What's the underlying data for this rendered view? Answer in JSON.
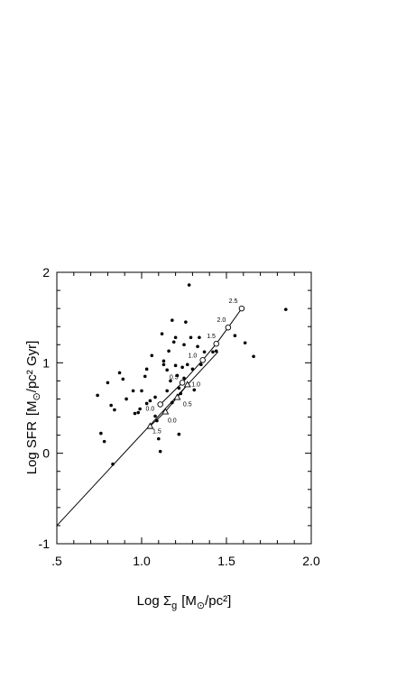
{
  "chart_data": {
    "type": "scatter",
    "title": "",
    "xlabel": {
      "main": "Log Σ",
      "sub": "g",
      "unit_open": "[M",
      "sun": "⊙",
      "unit_close": "/pc²]"
    },
    "ylabel": {
      "main": "Log SFR",
      "unit_open": "[M",
      "sun": "⊙",
      "unit_close": "/pc² Gyr]"
    },
    "xlim": [
      0.5,
      2.0
    ],
    "ylim": [
      -1,
      2
    ],
    "x_ticks": [
      {
        "v": 0.5,
        "label": ".5"
      },
      {
        "v": 1.0,
        "label": "1.0"
      },
      {
        "v": 1.5,
        "label": "1.5"
      },
      {
        "v": 2.0,
        "label": "2.0"
      }
    ],
    "y_ticks": [
      {
        "v": -1,
        "label": "-1"
      },
      {
        "v": 0,
        "label": "0"
      },
      {
        "v": 1,
        "label": "1"
      },
      {
        "v": 2,
        "label": "2"
      }
    ],
    "grid": false,
    "observed": [
      [
        0.74,
        0.64
      ],
      [
        0.76,
        0.22
      ],
      [
        0.78,
        0.13
      ],
      [
        0.8,
        0.78
      ],
      [
        0.82,
        0.53
      ],
      [
        0.83,
        -0.12
      ],
      [
        0.84,
        0.48
      ],
      [
        0.87,
        0.89
      ],
      [
        0.89,
        0.82
      ],
      [
        0.91,
        0.6
      ],
      [
        0.95,
        0.69
      ],
      [
        0.96,
        0.44
      ],
      [
        0.98,
        0.45
      ],
      [
        0.99,
        0.49
      ],
      [
        1.0,
        0.69
      ],
      [
        1.02,
        0.85
      ],
      [
        1.03,
        0.93
      ],
      [
        1.03,
        0.55
      ],
      [
        1.05,
        0.58
      ],
      [
        1.06,
        1.08
      ],
      [
        1.08,
        0.62
      ],
      [
        1.08,
        0.41
      ],
      [
        1.09,
        0.36
      ],
      [
        1.1,
        0.16
      ],
      [
        1.11,
        0.02
      ],
      [
        1.12,
        1.32
      ],
      [
        1.13,
        1.02
      ],
      [
        1.13,
        0.98
      ],
      [
        1.15,
        0.92
      ],
      [
        1.15,
        0.69
      ],
      [
        1.16,
        1.13
      ],
      [
        1.17,
        0.8
      ],
      [
        1.18,
        1.47
      ],
      [
        1.18,
        0.56
      ],
      [
        1.19,
        1.23
      ],
      [
        1.2,
        1.28
      ],
      [
        1.2,
        0.97
      ],
      [
        1.21,
        0.86
      ],
      [
        1.22,
        0.72
      ],
      [
        1.22,
        0.21
      ],
      [
        1.23,
        0.66
      ],
      [
        1.24,
        0.95
      ],
      [
        1.25,
        1.2
      ],
      [
        1.25,
        0.83
      ],
      [
        1.26,
        1.45
      ],
      [
        1.27,
        0.98
      ],
      [
        1.28,
        1.86
      ],
      [
        1.29,
        1.28
      ],
      [
        1.3,
        0.93
      ],
      [
        1.31,
        0.7
      ],
      [
        1.33,
        1.18
      ],
      [
        1.34,
        1.28
      ],
      [
        1.35,
        0.98
      ],
      [
        1.37,
        1.12
      ],
      [
        1.42,
        1.12
      ],
      [
        1.44,
        1.13
      ],
      [
        1.55,
        1.3
      ],
      [
        1.61,
        1.22
      ],
      [
        1.66,
        1.07
      ],
      [
        1.85,
        1.59
      ]
    ],
    "fit_line": {
      "x": [
        0.5,
        1.45
      ],
      "y": [
        -0.8,
        1.12
      ]
    },
    "model_circles": {
      "x": [
        1.11,
        1.24,
        1.36,
        1.44,
        1.51,
        1.59
      ],
      "y": [
        0.54,
        0.78,
        1.03,
        1.21,
        1.39,
        1.6
      ],
      "labels": [
        {
          "text": "0.0",
          "dx": -0.06,
          "dy": -0.05
        },
        {
          "text": "0.5",
          "dx": -0.05,
          "dy": 0.06
        },
        {
          "text": "1.0",
          "dx": -0.06,
          "dy": 0.05
        },
        {
          "text": "1.5",
          "dx": -0.03,
          "dy": 0.08
        },
        {
          "text": "2.0",
          "dx": -0.04,
          "dy": 0.08
        },
        {
          "text": "2.5",
          "dx": -0.05,
          "dy": 0.08
        }
      ]
    },
    "model_triangles": {
      "x": [
        1.05,
        1.14,
        1.21,
        1.27
      ],
      "y": [
        0.3,
        0.46,
        0.62,
        0.76
      ],
      "labels": [
        {
          "text": "1.5",
          "dx": 0.04,
          "dy": -0.06
        },
        {
          "text": "0.0",
          "dx": 0.04,
          "dy": -0.1
        },
        {
          "text": "0.5",
          "dx": 0.06,
          "dy": -0.08
        },
        {
          "text": "1.0",
          "dx": 0.05,
          "dy": 0.0
        }
      ]
    }
  }
}
